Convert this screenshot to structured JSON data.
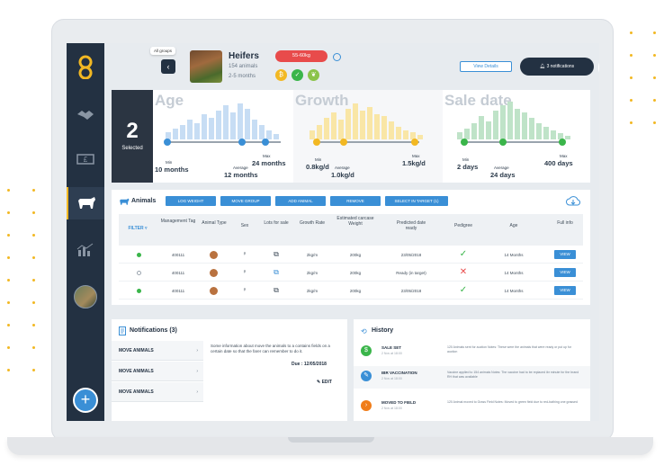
{
  "colors": {
    "accent": "#f2b823",
    "primary": "#3a8fd6",
    "dark": "#233142",
    "danger": "#e84b4b",
    "success": "#3ab54a"
  },
  "topbar": {
    "tooltip": "All groups",
    "herd_name": "Heifers",
    "herd_count": "154 animals",
    "herd_months": "2-5 months",
    "weight_pill": "55-60kg",
    "view_details": "View Details",
    "notifications": "3 notifications"
  },
  "sidebar": {
    "icons": [
      "logo-icon",
      "handshake-icon",
      "money-icon",
      "cow-icon",
      "chart-icon",
      "avatar"
    ]
  },
  "stats": {
    "selected_count": "2",
    "selected_label": "Selected",
    "age": {
      "title": "Age",
      "min_label": "Min",
      "min_value": "10 months",
      "avg_label": "Average",
      "avg_value": "12 months",
      "max_label": "Max",
      "max_value": "24 months"
    },
    "growth": {
      "title": "Growth",
      "min_label": "Min",
      "min_value": "0.8kg/d",
      "avg_label": "Average",
      "avg_value": "1.0kg/d",
      "max_label": "Max",
      "max_value": "1.5kg/d"
    },
    "sale": {
      "title": "Sale date",
      "min_label": "Min",
      "min_value": "2 days",
      "avg_label": "Average",
      "avg_value": "24 days",
      "max_label": "Max",
      "max_value": "400 days"
    }
  },
  "animals": {
    "title": "Animals",
    "actions": [
      "LOG WEIGHT",
      "MOVE GROUP",
      "ADD ANIMAL",
      "REMOVE",
      "SELECT IN TARGET (1)"
    ],
    "filter": "FILTER",
    "headers": [
      "Management Tag",
      "Animal Type",
      "Sex",
      "Lots for sale",
      "Growth Rate",
      "Estimated carcase Weight",
      "Predicted date ready",
      "Pedigree",
      "Age",
      "Full info"
    ],
    "rows": [
      {
        "tag": "400111",
        "growth": "2kg/m",
        "weight": "200kg",
        "date": "23/05/2018",
        "age": "14 Months",
        "view": "VIEW"
      },
      {
        "tag": "400111",
        "growth": "2kg/m",
        "weight": "200kg",
        "date": "Ready (in target)",
        "age": "14 Months",
        "view": "VIEW"
      },
      {
        "tag": "400111",
        "growth": "2kg/m",
        "weight": "200kg",
        "date": "23/05/2018",
        "age": "14 Months",
        "view": "VIEW"
      }
    ]
  },
  "notifications": {
    "title": "Notifications (3)",
    "items": [
      "MOVE ANIMALS",
      "MOVE ANIMALS",
      "MOVE ANIMALS"
    ],
    "detail_text": "Some information about move the animals to a contains fields on a certain date so that the farer can remember to do it.",
    "due": "Due : 12/05/2018",
    "edit": "EDIT"
  },
  "history": {
    "title": "History",
    "items": [
      {
        "name": "SALE SET",
        "date": "2 Nov at 18:00",
        "desc": "120 Animals sent for auction Notes: These were the animals that were ready or put up for auction"
      },
      {
        "name": "IBR VACCINATION",
        "date": "2 Nov at 18:00",
        "desc": "Vaccine applied to 154 animals Notes: The vaccine had to be replaced ibr minute for the brand RH that was available"
      },
      {
        "name": "MOVED TO FIELD",
        "date": "2 Nov at 18:00",
        "desc": "120 Animal moved to Grass Field Notes: Moved to green field due to red-bathing one grassed"
      }
    ]
  }
}
